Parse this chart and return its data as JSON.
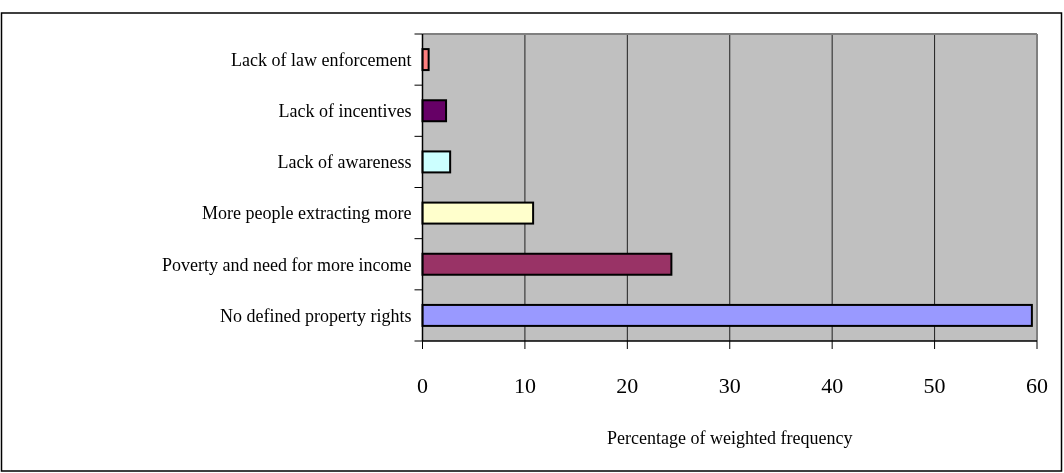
{
  "chart_data": {
    "type": "bar",
    "orientation": "horizontal",
    "xlabel": "Percentage of weighted frequency",
    "categories": [
      "Lack of law enforcement",
      "Lack of incentives",
      "Lack of awareness",
      "More people extracting more",
      "Poverty and need for more income",
      "No defined property rights"
    ],
    "values": [
      0.6,
      2.3,
      2.7,
      10.8,
      24.3,
      59.5
    ],
    "colors": [
      "#ff8080",
      "#660066",
      "#ccffff",
      "#ffffcc",
      "#993366",
      "#9999ff"
    ],
    "xlim": [
      0,
      60
    ],
    "xticks": [
      0,
      10,
      20,
      30,
      40,
      50,
      60
    ],
    "grid": "x"
  }
}
